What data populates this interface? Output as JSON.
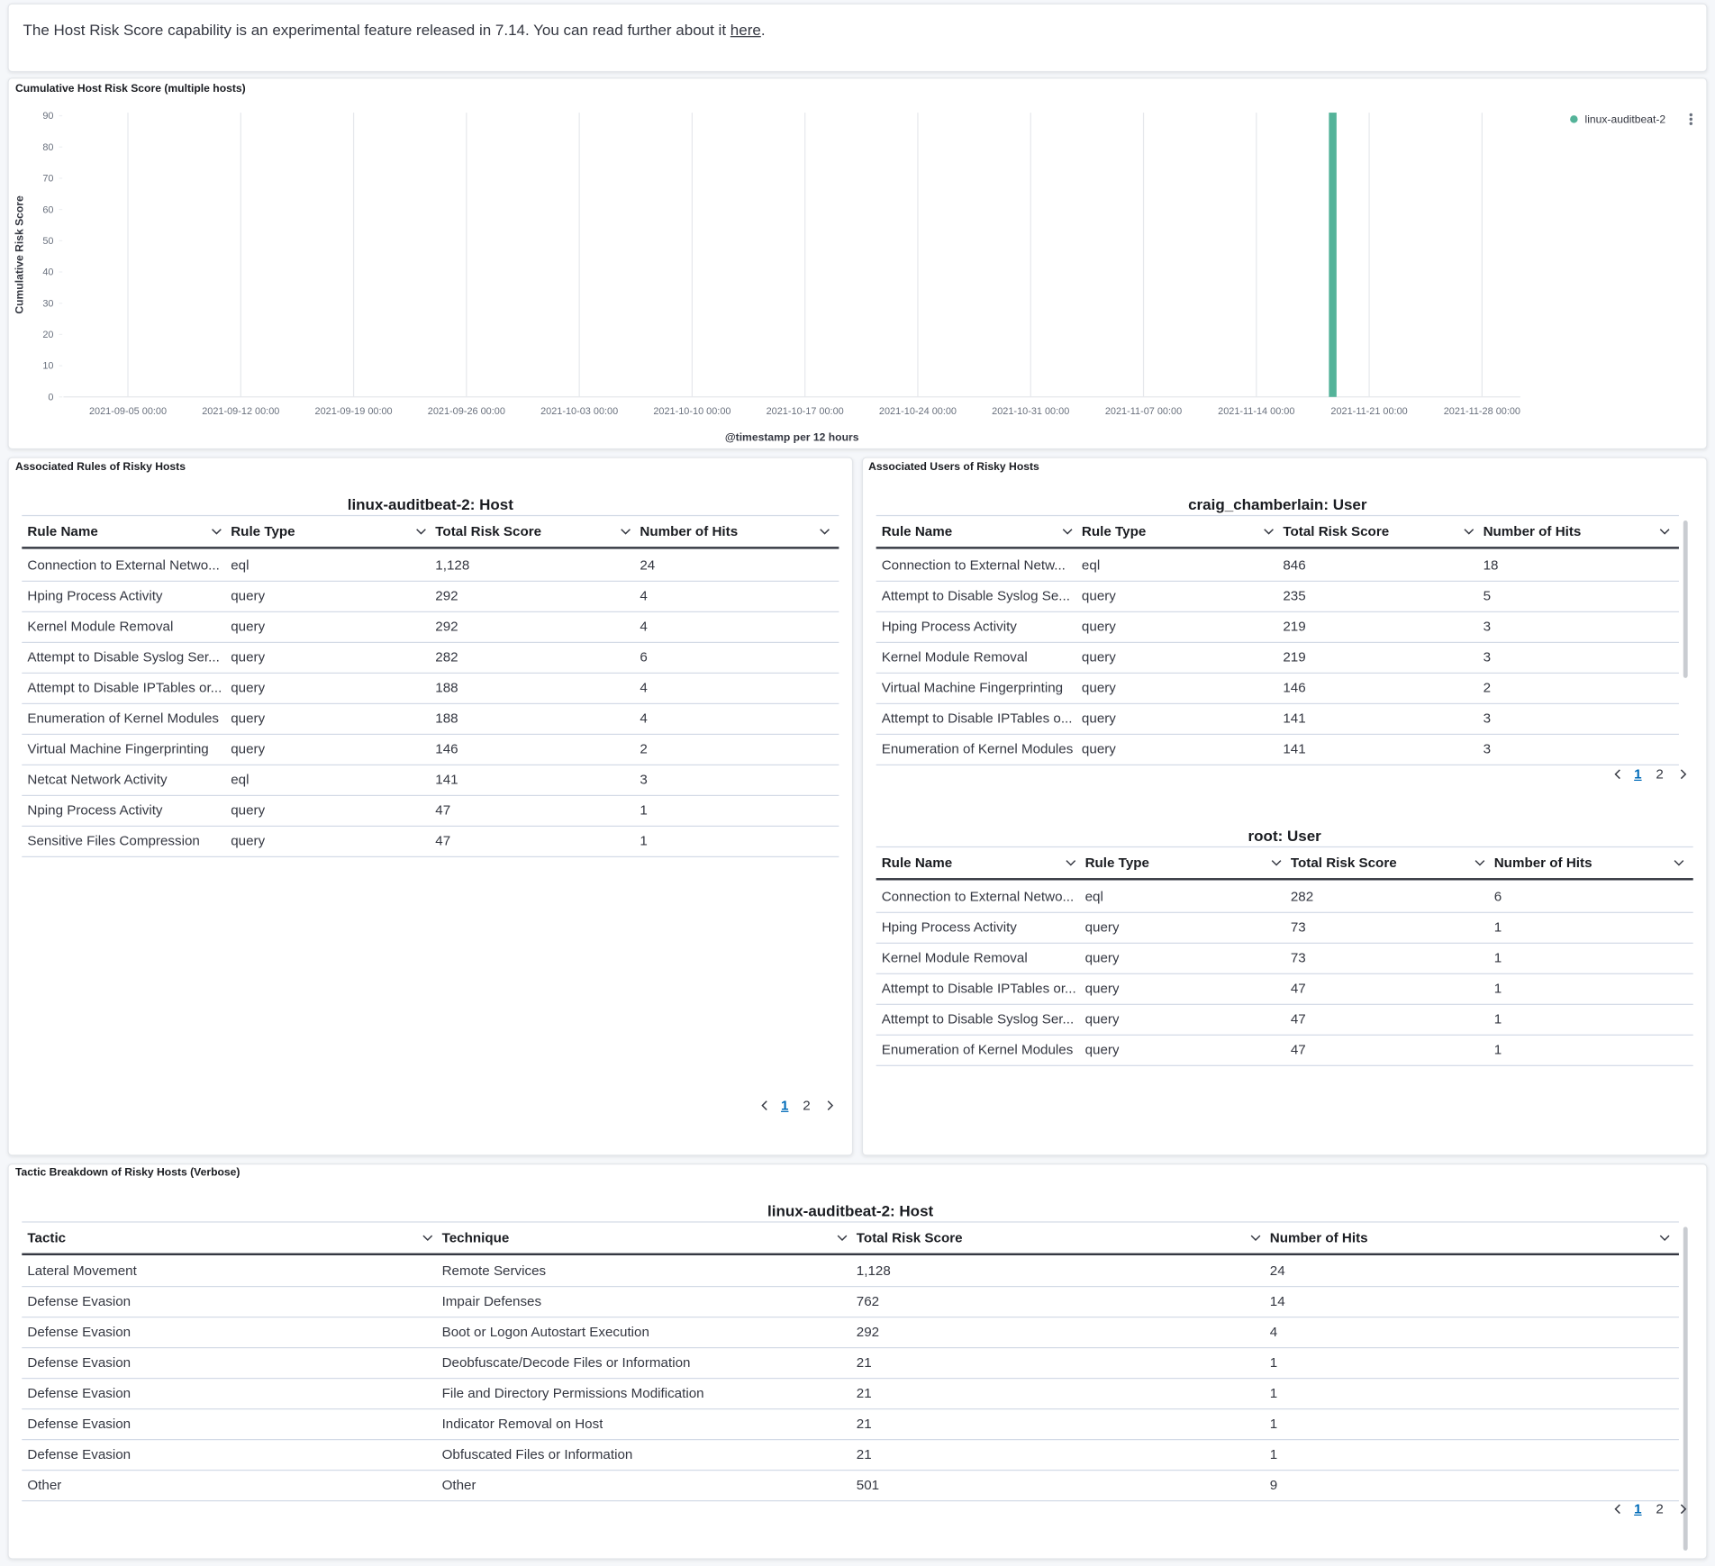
{
  "banner": {
    "text": "The Host Risk Score capability is an experimental feature released in 7.14. You can read further about it ",
    "link": "here",
    "end": "."
  },
  "chart_data": {
    "type": "bar",
    "title": "Cumulative Host Risk Score (multiple hosts)",
    "y_label": "Cumulative Risk Score",
    "x_label": "@timestamp per 12 hours",
    "x": [
      "2021-11-18 12:00"
    ],
    "series": [
      {
        "name": "linux-auditbeat-2",
        "color": "#54b399",
        "values": [
          91
        ]
      }
    ],
    "ylim": [
      0,
      91
    ],
    "yticks": [
      0,
      10,
      20,
      30,
      40,
      50,
      60,
      70,
      80,
      90
    ],
    "xlim": [
      "2021-09-01 00:00",
      "2021-11-30 09:00"
    ],
    "xticks": [
      "2021-09-05 00:00",
      "2021-09-12 00:00",
      "2021-09-19 00:00",
      "2021-09-26 00:00",
      "2021-10-03 00:00",
      "2021-10-10 00:00",
      "2021-10-17 00:00",
      "2021-10-24 00:00",
      "2021-10-31 00:00",
      "2021-11-07 00:00",
      "2021-11-14 00:00",
      "2021-11-21 00:00",
      "2021-11-28 00:00"
    ],
    "grid": "x",
    "legend": "top-right"
  },
  "panels": [
    {
      "title": "Associated Rules of Risky Hosts",
      "tables": [
        {
          "title": "linux-auditbeat-2: Host",
          "columns": [
            "Rule Name",
            "Rule Type",
            "Total Risk Score",
            "Number of Hits"
          ],
          "rows": [
            [
              "Connection to External Netwo...",
              "eql",
              "1,128",
              "24"
            ],
            [
              "Hping Process Activity",
              "query",
              "292",
              "4"
            ],
            [
              "Kernel Module Removal",
              "query",
              "292",
              "4"
            ],
            [
              "Attempt to Disable Syslog Ser...",
              "query",
              "282",
              "6"
            ],
            [
              "Attempt to Disable IPTables or...",
              "query",
              "188",
              "4"
            ],
            [
              "Enumeration of Kernel Modules",
              "query",
              "188",
              "4"
            ],
            [
              "Virtual Machine Fingerprinting",
              "query",
              "146",
              "2"
            ],
            [
              "Netcat Network Activity",
              "eql",
              "141",
              "3"
            ],
            [
              "Nping Process Activity",
              "query",
              "47",
              "1"
            ],
            [
              "Sensitive Files Compression",
              "query",
              "47",
              "1"
            ]
          ],
          "pages": [
            "1",
            "2"
          ]
        }
      ]
    },
    {
      "title": "Associated Users of Risky Hosts",
      "tables": [
        {
          "title": "craig_chamberlain: User",
          "columns": [
            "Rule Name",
            "Rule Type",
            "Total Risk Score",
            "Number of Hits"
          ],
          "rows": [
            [
              "Connection to External Netw...",
              "eql",
              "846",
              "18"
            ],
            [
              "Attempt to Disable Syslog Se...",
              "query",
              "235",
              "5"
            ],
            [
              "Hping Process Activity",
              "query",
              "219",
              "3"
            ],
            [
              "Kernel Module Removal",
              "query",
              "219",
              "3"
            ],
            [
              "Virtual Machine Fingerprinting",
              "query",
              "146",
              "2"
            ],
            [
              "Attempt to Disable IPTables o...",
              "query",
              "141",
              "3"
            ],
            [
              "Enumeration of Kernel Modules",
              "query",
              "141",
              "3"
            ]
          ],
          "pages": [
            "1",
            "2"
          ]
        },
        {
          "title": "root: User",
          "columns": [
            "Rule Name",
            "Rule Type",
            "Total Risk Score",
            "Number of Hits"
          ],
          "rows": [
            [
              "Connection to External Netwo...",
              "eql",
              "282",
              "6"
            ],
            [
              "Hping Process Activity",
              "query",
              "73",
              "1"
            ],
            [
              "Kernel Module Removal",
              "query",
              "73",
              "1"
            ],
            [
              "Attempt to Disable IPTables or...",
              "query",
              "47",
              "1"
            ],
            [
              "Attempt to Disable Syslog Ser...",
              "query",
              "47",
              "1"
            ],
            [
              "Enumeration of Kernel Modules",
              "query",
              "47",
              "1"
            ]
          ]
        }
      ]
    },
    {
      "title": "Tactic Breakdown of Risky Hosts (Verbose)",
      "tables": [
        {
          "title": "linux-auditbeat-2: Host",
          "columns": [
            "Tactic",
            "Technique",
            "Total Risk Score",
            "Number of Hits"
          ],
          "rows": [
            [
              "Lateral Movement",
              "Remote Services",
              "1,128",
              "24"
            ],
            [
              "Defense Evasion",
              "Impair Defenses",
              "762",
              "14"
            ],
            [
              "Defense Evasion",
              "Boot or Logon Autostart Execution",
              "292",
              "4"
            ],
            [
              "Defense Evasion",
              "Deobfuscate/Decode Files or Information",
              "21",
              "1"
            ],
            [
              "Defense Evasion",
              "File and Directory Permissions Modification",
              "21",
              "1"
            ],
            [
              "Defense Evasion",
              "Indicator Removal on Host",
              "21",
              "1"
            ],
            [
              "Defense Evasion",
              "Obfuscated Files or Information",
              "21",
              "1"
            ],
            [
              "Other",
              "Other",
              "501",
              "9"
            ]
          ],
          "pages": [
            "1",
            "2"
          ]
        }
      ]
    }
  ]
}
